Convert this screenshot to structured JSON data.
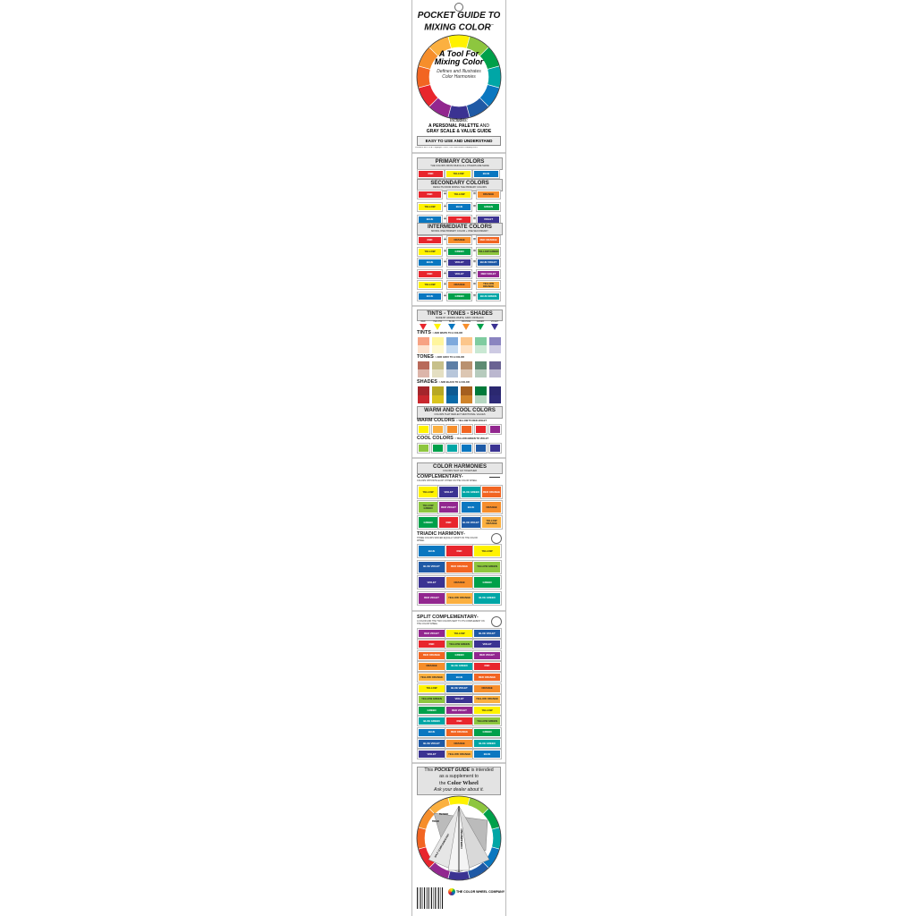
{
  "colors": {
    "red": "#e8262d",
    "yellow": "#fff200",
    "blue": "#0a77c0",
    "orange": "#f68e2b",
    "green": "#00a04a",
    "violet": "#3b3392",
    "yellow_green": "#8dc63f",
    "blue_green": "#00a6a6",
    "blue_violet": "#1f5aa6",
    "red_violet": "#92278f",
    "red_orange": "#f26522",
    "yellow_orange": "#fbb040"
  },
  "wheel_order": [
    "yellow",
    "yellow_green",
    "green",
    "blue_green",
    "blue",
    "blue_violet",
    "violet",
    "red_violet",
    "red",
    "red_orange",
    "orange",
    "yellow_orange"
  ],
  "header": {
    "title_line1": "POCKET GUIDE TO",
    "title_line2": "MIXING COLOR",
    "tm": "™",
    "wheel_title": "A Tool For Mixing Color",
    "wheel_sub": "Defines and Illustrates Color Harmonies",
    "includes": "Includes:",
    "includes_1a": "A PERSONAL PALETTE",
    "includes_1b": "AND",
    "includes_2": "GRAY SCALE & VALUE GUIDE",
    "easy": "EASY TO USE AND UNDERSTAND",
    "copyright": "Printed in the U.S.A.   Copyright ©2001, The Color Wheel Company   0901"
  },
  "labels": {
    "red": "RED",
    "yellow": "YELLOW",
    "blue": "BLUE",
    "orange": "ORANGE",
    "green": "GREEN",
    "violet": "VIOLET",
    "yellow_green": "YELLOW GREEN",
    "blue_green": "BLUE GREEN",
    "blue_violet": "BLUE VIOLET",
    "red_violet": "RED VIOLET",
    "red_orange": "RED ORANGE",
    "yellow_orange": "YELLOW ORANGE"
  },
  "primary": {
    "title": "PRIMARY COLORS",
    "sub": "THE COLORS FROM WHICH ALL OTHERS ARE MADE",
    "colors": [
      "red",
      "yellow",
      "blue"
    ]
  },
  "secondary": {
    "title": "SECONDARY COLORS",
    "sub": "RESULTS FROM MIXING THE PRIMARY COLORS",
    "rows": [
      [
        "red",
        "yellow",
        "orange"
      ],
      [
        "yellow",
        "blue",
        "green"
      ],
      [
        "blue",
        "red",
        "violet"
      ]
    ]
  },
  "intermediate": {
    "title": "INTERMEDIATE COLORS",
    "sub": "MIXING ONE PRIMARY COLOR + ONE SECONDARY",
    "rows": [
      [
        "red",
        "orange",
        "red_orange"
      ],
      [
        "yellow",
        "green",
        "yellow_green"
      ],
      [
        "blue",
        "violet",
        "blue_violet"
      ],
      [
        "red",
        "violet",
        "red_violet"
      ],
      [
        "yellow",
        "orange",
        "yellow_orange"
      ],
      [
        "blue",
        "green",
        "blue_green"
      ]
    ]
  },
  "plus": "+",
  "equals": "=",
  "tints_tones": {
    "title": "TINTS - TONES - SHADES",
    "sub": "MADE BY ADDING WHITE, GRAY OR BLACK",
    "colors": [
      "red",
      "yellow",
      "blue",
      "orange",
      "green",
      "violet"
    ],
    "tints_label": "TINTS",
    "tints_note": "ADD WHITE TO A COLOR",
    "tints": [
      [
        "#f7a283",
        "#fde3cf"
      ],
      [
        "#fff59d",
        "#fff9d0"
      ],
      [
        "#7ea9dc",
        "#c6dbf1"
      ],
      [
        "#fcc68b",
        "#fee3c6"
      ],
      [
        "#7fcca0",
        "#c9e8d3"
      ],
      [
        "#8a84c0",
        "#cdcae3"
      ]
    ],
    "tones_label": "TONES",
    "tones_note": "ADD GRAY TO A COLOR",
    "tones": [
      [
        "#b86a5a",
        "#dcb5aa"
      ],
      [
        "#c7c08a",
        "#e4dfc2"
      ],
      [
        "#5d7fa6",
        "#b7c6da"
      ],
      [
        "#b99170",
        "#dcc6b2"
      ],
      [
        "#5e8c74",
        "#b6cbbd"
      ],
      [
        "#6a6393",
        "#bbb7cf"
      ]
    ],
    "shades_label": "SHADES",
    "shades_note": "ADD BLACK TO A COLOR",
    "shades": [
      [
        "#a4252b",
        "#c9272e"
      ],
      [
        "#b7a823",
        "#d9c41d"
      ],
      [
        "#0d5a92",
        "#0a6aa8"
      ],
      [
        "#a55f1f",
        "#d0842a"
      ],
      [
        "#007a3a",
        "#b5d6c0"
      ],
      [
        "#2b2870",
        "#2e2b78"
      ]
    ]
  },
  "warm_cool": {
    "title": "WARM AND COOL COLORS",
    "sub": "COLORS THAT REFLECT EMOTIONAL VALUES",
    "warm_label": "WARM COLORS",
    "warm_note": "YELLOW TO RED-VIOLET",
    "warm": [
      "yellow",
      "yellow_orange",
      "orange",
      "red_orange",
      "red",
      "red_violet"
    ],
    "cool_label": "COOL COLORS",
    "cool_note": "YELLOW-GREEN TO VIOLET",
    "cool": [
      "yellow_green",
      "green",
      "blue_green",
      "blue",
      "blue_violet",
      "violet"
    ]
  },
  "harmonies": {
    "title": "COLOR HARMONIES",
    "sub": "COLORS THAT GO TOGETHER",
    "comp_label": "COMPLEMENTARY-",
    "comp_note": "COLORS OPPOSITE EACH OTHER ON THE COLOR WHEEL",
    "comp_pairs": [
      [
        "yellow",
        "violet"
      ],
      [
        "blue_green",
        "red_orange"
      ],
      [
        "yellow_green",
        "red_violet"
      ],
      [
        "blue",
        "orange"
      ],
      [
        "green",
        "red"
      ],
      [
        "blue_violet",
        "yellow_orange"
      ]
    ],
    "triad_label": "TRIADIC HARMONY-",
    "triad_note": "THREE COLORS SPACED EQUALLY APART ON THE COLOR WHEEL",
    "triads": [
      [
        "blue",
        "red",
        "yellow"
      ],
      [
        "blue_violet",
        "red_orange",
        "yellow_green"
      ],
      [
        "violet",
        "orange",
        "green"
      ],
      [
        "red_violet",
        "yellow_orange",
        "blue_green"
      ]
    ]
  },
  "split": {
    "label": "SPLIT COMPLEMENTARY-",
    "note": "A COLOR AND THE TWO COLORS NEXT TO ITS COMPLEMENT ON THE COLOR WHEEL",
    "rows": [
      [
        "red_violet",
        "yellow",
        "blue_violet"
      ],
      [
        "red",
        "yellow_green",
        "violet"
      ],
      [
        "red_orange",
        "green",
        "red_violet"
      ],
      [
        "orange",
        "blue_green",
        "red"
      ],
      [
        "yellow_orange",
        "blue",
        "red_orange"
      ],
      [
        "yellow",
        "blue_violet",
        "orange"
      ],
      [
        "yellow_green",
        "violet",
        "yellow_orange"
      ],
      [
        "green",
        "red_violet",
        "yellow"
      ],
      [
        "blue_green",
        "red",
        "yellow_green"
      ],
      [
        "blue",
        "red_orange",
        "green"
      ],
      [
        "blue_violet",
        "orange",
        "blue_green"
      ],
      [
        "violet",
        "yellow_orange",
        "blue"
      ]
    ]
  },
  "footer": {
    "l1a": "This",
    "l1b": "POCKET GUIDE",
    "l1c": "is intended",
    "l2": "as a supplement to",
    "l3a": "the",
    "l3b": "Color Wheel",
    "l4": "Ask your dealer about it.",
    "wheel_labels": [
      "TETRAD",
      "TRIAD",
      "SPLIT COMPLEMENTARY",
      "COMPLEMENTARY"
    ],
    "company": "THE COLOR WHEEL COMPANY"
  }
}
